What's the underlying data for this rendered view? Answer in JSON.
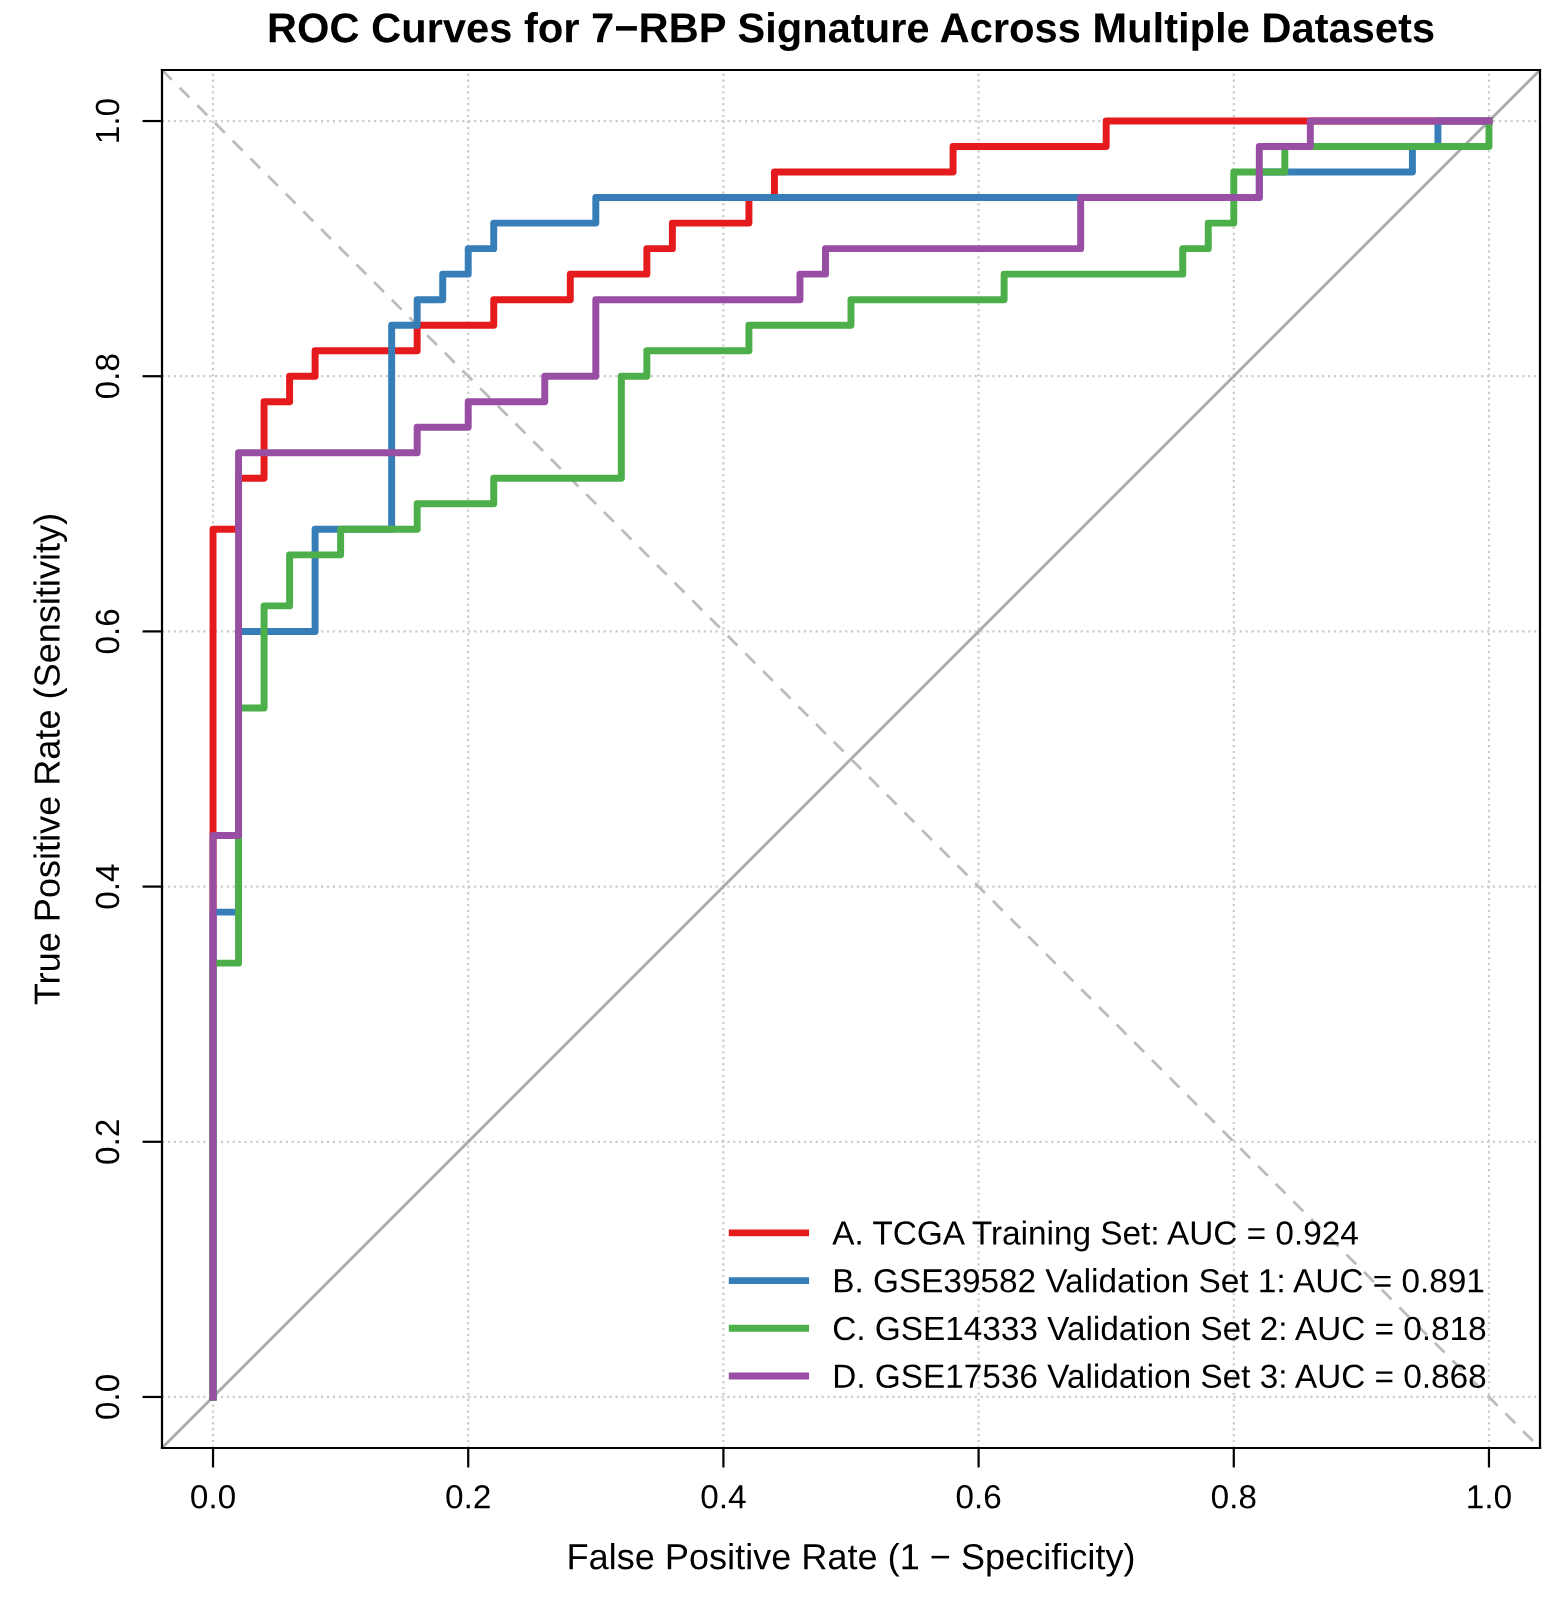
{
  "chart_data": {
    "type": "line",
    "title": "ROC Curves for 7−RBP Signature Across Multiple Datasets",
    "xlabel": "False Positive Rate (1 − Specificity)",
    "ylabel": "True Positive Rate (Sensitivity)",
    "xlim": [
      -0.04,
      1.04
    ],
    "ylim": [
      -0.04,
      1.04
    ],
    "xticks": [
      {
        "value": 0,
        "label": "0.0"
      },
      0.2,
      0.4,
      0.6,
      0.8,
      {
        "value": 1,
        "label": "1.0"
      }
    ],
    "yticks": [
      {
        "value": 0,
        "label": "0.0"
      },
      0.2,
      0.4,
      0.6,
      0.8,
      {
        "value": 1,
        "label": "1.0"
      }
    ],
    "grid": true,
    "legend": "bottom right",
    "line_style": "solid",
    "marker": "none",
    "series": [
      {
        "x": [
          -0.04,
          1.04
        ],
        "values": [
          -0.04,
          1.04
        ],
        "color": "#aaaaaa",
        "line_style": "solid"
      },
      {
        "x": [
          -0.04,
          1.04
        ],
        "values": [
          1.04,
          -0.04
        ],
        "color": "#bbbbbb",
        "line_style": "dashed"
      },
      {
        "name": "A. TCGA Training Set: AUC = 0.924",
        "color": "#e41a1c",
        "x": [
          0,
          0,
          0.02,
          0.02,
          0.04,
          0.04,
          0.06,
          0.06,
          0.08,
          0.08,
          0.16,
          0.16,
          0.22,
          0.22,
          0.28,
          0.28,
          0.34,
          0.34,
          0.36,
          0.36,
          0.42,
          0.42,
          0.44,
          0.44,
          0.58,
          0.58,
          0.7,
          0.7,
          1.0
        ],
        "values": [
          0,
          0.68,
          0.68,
          0.72,
          0.72,
          0.78,
          0.78,
          0.8,
          0.8,
          0.82,
          0.82,
          0.84,
          0.84,
          0.86,
          0.86,
          0.88,
          0.88,
          0.9,
          0.9,
          0.92,
          0.92,
          0.94,
          0.94,
          0.96,
          0.96,
          0.98,
          0.98,
          1.0,
          1.0
        ]
      },
      {
        "name": "B. GSE39582 Validation Set 1: AUC = 0.891",
        "color": "#377eb8",
        "x": [
          0,
          0,
          0.02,
          0.02,
          0.08,
          0.08,
          0.14,
          0.14,
          0.16,
          0.16,
          0.18,
          0.18,
          0.2,
          0.2,
          0.22,
          0.22,
          0.3,
          0.3,
          0.82,
          0.82,
          0.94,
          0.94,
          0.96,
          0.96,
          1.0
        ],
        "values": [
          0,
          0.38,
          0.38,
          0.6,
          0.6,
          0.68,
          0.68,
          0.84,
          0.84,
          0.86,
          0.86,
          0.88,
          0.88,
          0.9,
          0.9,
          0.92,
          0.92,
          0.94,
          0.94,
          0.96,
          0.96,
          0.98,
          0.98,
          1.0,
          1.0
        ]
      },
      {
        "name": "C. GSE14333 Validation Set 2: AUC = 0.818",
        "color": "#4daf4a",
        "x": [
          0,
          0,
          0.02,
          0.02,
          0.04,
          0.04,
          0.06,
          0.06,
          0.1,
          0.1,
          0.16,
          0.16,
          0.22,
          0.22,
          0.32,
          0.32,
          0.34,
          0.34,
          0.42,
          0.42,
          0.5,
          0.5,
          0.62,
          0.62,
          0.76,
          0.76,
          0.78,
          0.78,
          0.8,
          0.8,
          0.84,
          0.84,
          1.0,
          1.0
        ],
        "values": [
          0,
          0.34,
          0.34,
          0.54,
          0.54,
          0.62,
          0.62,
          0.66,
          0.66,
          0.68,
          0.68,
          0.7,
          0.7,
          0.72,
          0.72,
          0.8,
          0.8,
          0.82,
          0.82,
          0.84,
          0.84,
          0.86,
          0.86,
          0.88,
          0.88,
          0.9,
          0.9,
          0.92,
          0.92,
          0.96,
          0.96,
          0.98,
          0.98,
          1.0
        ]
      },
      {
        "name": "D. GSE17536 Validation Set 3: AUC = 0.868",
        "color": "#984ea3",
        "x": [
          0,
          0,
          0.02,
          0.02,
          0.16,
          0.16,
          0.2,
          0.2,
          0.26,
          0.26,
          0.3,
          0.3,
          0.46,
          0.46,
          0.48,
          0.48,
          0.68,
          0.68,
          0.82,
          0.82,
          0.86,
          0.86,
          1.0
        ],
        "values": [
          0,
          0.44,
          0.44,
          0.74,
          0.74,
          0.76,
          0.76,
          0.78,
          0.78,
          0.8,
          0.8,
          0.86,
          0.86,
          0.88,
          0.88,
          0.9,
          0.9,
          0.94,
          0.94,
          0.98,
          0.98,
          1.0,
          1.0
        ]
      }
    ]
  }
}
